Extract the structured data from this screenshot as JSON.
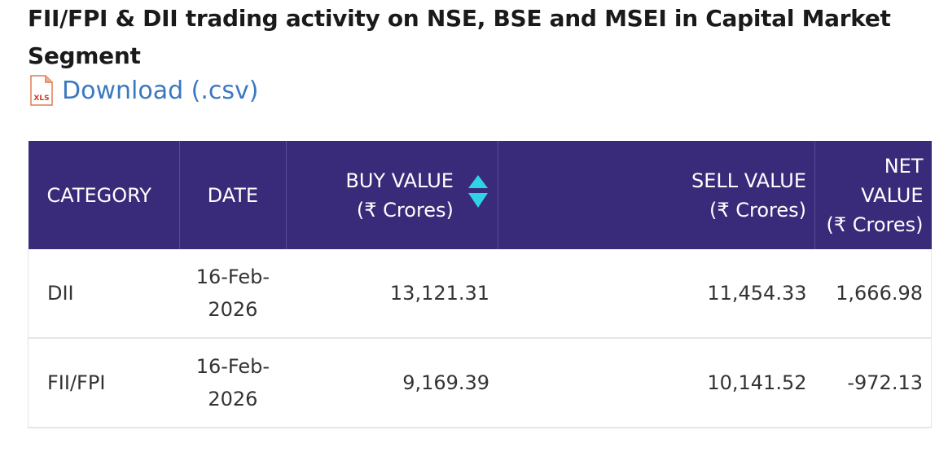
{
  "title": "FII/FPI & DII trading activity on NSE, BSE and MSEI in Capital Market Segment",
  "download": {
    "icon_text": "XLS",
    "label": "Download (.csv)"
  },
  "colors": {
    "header_bg": "#3a2b7a",
    "sort_icon": "#2ed3e6",
    "link": "#3a78c0"
  },
  "table": {
    "headers": {
      "category": "CATEGORY",
      "date": "DATE",
      "buy_value": "BUY VALUE",
      "buy_unit": "(₹ Crores)",
      "sell_value": "SELL VALUE",
      "sell_unit": "(₹ Crores)",
      "net_value_1": "NET",
      "net_value_2": "VALUE",
      "net_unit": "(₹ Crores)"
    },
    "rows": [
      {
        "category": "DII",
        "date_1": "16-Feb-",
        "date_2": "2026",
        "buy": "13,121.31",
        "sell": "11,454.33",
        "net": "1,666.98"
      },
      {
        "category": "FII/FPI",
        "date_1": "16-Feb-",
        "date_2": "2026",
        "buy": "9,169.39",
        "sell": "10,141.52",
        "net": "-972.13"
      }
    ]
  }
}
